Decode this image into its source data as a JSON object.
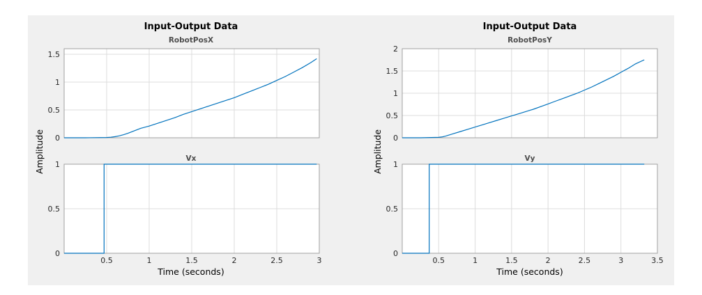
{
  "colors": {
    "figure_bg": "#f0f0f0",
    "axes_bg": "#ffffff",
    "line": "#0072bd"
  },
  "chart_data": [
    {
      "type": "line",
      "title": "Input-Output Data",
      "xlabel": "Time (seconds)",
      "ylabel": "Amplitude",
      "grid": true,
      "panels": [
        {
          "subtitle": "RobotPosX",
          "xlim": [
            0,
            3
          ],
          "ylim": [
            0,
            1.6
          ],
          "xticks": [
            0.5,
            1,
            1.5,
            2,
            2.5,
            3
          ],
          "xtick_labels": [],
          "yticks": [
            0,
            0.5,
            1,
            1.5
          ],
          "ytick_labels": [
            "0",
            "0.5",
            "1",
            "1.5"
          ],
          "series": [
            {
              "x": [
                0,
                0.25,
                0.5,
                0.55,
                0.6,
                0.65,
                0.7,
                0.75,
                0.8,
                0.85,
                0.9,
                0.95,
                1.0,
                1.1,
                1.2,
                1.3,
                1.4,
                1.5,
                1.6,
                1.7,
                1.8,
                1.9,
                2.0,
                2.1,
                2.2,
                2.3,
                2.4,
                2.5,
                2.6,
                2.7,
                2.8,
                2.9,
                2.97
              ],
              "y": [
                0,
                0,
                0.005,
                0.01,
                0.02,
                0.035,
                0.055,
                0.08,
                0.11,
                0.14,
                0.17,
                0.19,
                0.21,
                0.26,
                0.31,
                0.36,
                0.42,
                0.47,
                0.52,
                0.57,
                0.62,
                0.67,
                0.72,
                0.78,
                0.84,
                0.9,
                0.96,
                1.03,
                1.1,
                1.18,
                1.26,
                1.35,
                1.42
              ]
            }
          ]
        },
        {
          "subtitle": "Vx",
          "xlim": [
            0,
            3
          ],
          "ylim": [
            0,
            1
          ],
          "xticks": [
            0.5,
            1,
            1.5,
            2,
            2.5,
            3
          ],
          "xtick_labels": [
            "0.5",
            "1",
            "1.5",
            "2",
            "2.5",
            "3"
          ],
          "yticks": [
            0,
            0.5,
            1
          ],
          "ytick_labels": [
            "0",
            "0.5",
            "1"
          ],
          "series": [
            {
              "x": [
                0,
                0.47,
                0.47,
                2.97
              ],
              "y": [
                0,
                0,
                1,
                1
              ]
            }
          ]
        }
      ]
    },
    {
      "type": "line",
      "title": "Input-Output Data",
      "xlabel": "Time (seconds)",
      "ylabel": "Amplitude",
      "grid": true,
      "panels": [
        {
          "subtitle": "RobotPosY",
          "xlim": [
            0,
            3.5
          ],
          "ylim": [
            0,
            2
          ],
          "xticks": [
            0.5,
            1,
            1.5,
            2,
            2.5,
            3,
            3.5
          ],
          "xtick_labels": [],
          "yticks": [
            0,
            0.5,
            1,
            1.5,
            2
          ],
          "ytick_labels": [
            "0",
            "0.5",
            "1",
            "1.5",
            "2"
          ],
          "series": [
            {
              "x": [
                0,
                0.25,
                0.5,
                0.55,
                0.6,
                0.7,
                0.8,
                0.9,
                1.0,
                1.1,
                1.2,
                1.3,
                1.4,
                1.5,
                1.6,
                1.7,
                1.8,
                1.9,
                2.0,
                2.1,
                2.2,
                2.3,
                2.4,
                2.5,
                2.6,
                2.7,
                2.8,
                2.9,
                3.0,
                3.1,
                3.2,
                3.32
              ],
              "y": [
                0,
                0,
                0.01,
                0.02,
                0.04,
                0.09,
                0.14,
                0.19,
                0.24,
                0.29,
                0.34,
                0.39,
                0.44,
                0.49,
                0.54,
                0.59,
                0.64,
                0.7,
                0.76,
                0.82,
                0.88,
                0.94,
                1.0,
                1.07,
                1.14,
                1.22,
                1.3,
                1.38,
                1.47,
                1.56,
                1.66,
                1.75
              ]
            }
          ]
        },
        {
          "subtitle": "Vy",
          "xlim": [
            0,
            3.5
          ],
          "ylim": [
            0,
            1
          ],
          "xticks": [
            0.5,
            1,
            1.5,
            2,
            2.5,
            3,
            3.5
          ],
          "xtick_labels": [
            "0.5",
            "1",
            "1.5",
            "2",
            "2.5",
            "3",
            "3.5"
          ],
          "yticks": [
            0,
            0.5,
            1
          ],
          "ytick_labels": [
            "0",
            "0.5",
            "1"
          ],
          "series": [
            {
              "x": [
                0,
                0.37,
                0.37,
                3.32
              ],
              "y": [
                0,
                0,
                1,
                1
              ]
            }
          ]
        }
      ]
    }
  ]
}
